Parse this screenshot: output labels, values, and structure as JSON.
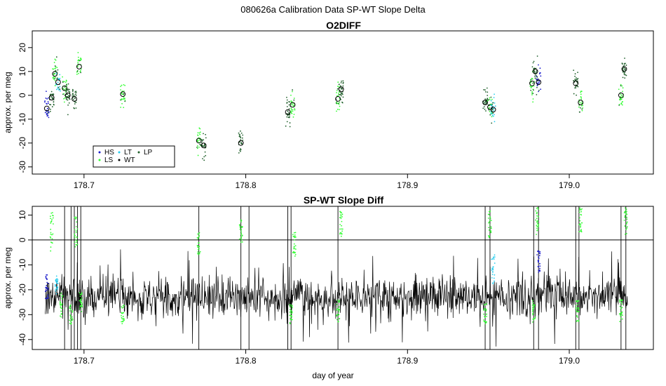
{
  "page_title": "080626a   Calibration Data SP-WT Slope Delta",
  "colors": {
    "HS": "#1a1acc",
    "LS": "#33ff33",
    "LT": "#22ccee",
    "WT": "#000000",
    "LP": "#1f5f2a"
  },
  "chart_data": [
    {
      "type": "scatter",
      "title": "O2DIFF",
      "xlabel": "",
      "ylabel": "approx. per meg",
      "xlim": [
        178.668,
        179.052
      ],
      "ylim": [
        -33,
        27
      ],
      "xticks": [
        178.7,
        178.8,
        178.9,
        179.0
      ],
      "xtick_labels": [
        "178.7",
        "178.8",
        "178.9",
        "179.0"
      ],
      "yticks": [
        -30,
        -20,
        -10,
        0,
        10,
        20
      ],
      "ytick_labels": [
        "-30",
        "-20",
        "-10",
        "0",
        "10",
        "20"
      ],
      "grid": false,
      "legend_position": "bottom-left",
      "legend": [
        {
          "key": "HS",
          "label": "HS",
          "marker": "dot"
        },
        {
          "key": "LS",
          "label": "LS",
          "marker": "dot"
        },
        {
          "key": "LT",
          "label": "LT",
          "marker": "dot"
        },
        {
          "key": "WT",
          "label": "WT",
          "marker": "dot"
        },
        {
          "key": "LP",
          "label": "LP",
          "marker": "dot"
        }
      ],
      "clusters": [
        {
          "x": 178.677,
          "y": -5.5,
          "series": "HS"
        },
        {
          "x": 178.68,
          "y": -1,
          "series": "LP"
        },
        {
          "x": 178.682,
          "y": 9,
          "series": "LS"
        },
        {
          "x": 178.684,
          "y": 5.5,
          "series": "LT"
        },
        {
          "x": 178.688,
          "y": 3,
          "series": "LS"
        },
        {
          "x": 178.69,
          "y": 0,
          "series": "LP"
        },
        {
          "x": 178.694,
          "y": -1.5,
          "series": "LP"
        },
        {
          "x": 178.697,
          "y": 12,
          "series": "LS"
        },
        {
          "x": 178.724,
          "y": 0.5,
          "series": "LS"
        },
        {
          "x": 178.771,
          "y": -19,
          "series": "LS"
        },
        {
          "x": 178.774,
          "y": -21,
          "series": "LP"
        },
        {
          "x": 178.797,
          "y": -20,
          "series": "LP"
        },
        {
          "x": 178.826,
          "y": -7,
          "series": "LP"
        },
        {
          "x": 178.829,
          "y": -4,
          "series": "LS"
        },
        {
          "x": 178.857,
          "y": -1.5,
          "series": "LS"
        },
        {
          "x": 178.859,
          "y": 2.5,
          "series": "LP"
        },
        {
          "x": 178.948,
          "y": -3,
          "series": "LP"
        },
        {
          "x": 178.951,
          "y": -5,
          "series": "LS"
        },
        {
          "x": 178.953,
          "y": -6,
          "series": "LT"
        },
        {
          "x": 178.977,
          "y": 5,
          "series": "LS"
        },
        {
          "x": 178.979,
          "y": 10,
          "series": "LP"
        },
        {
          "x": 178.981,
          "y": 5.5,
          "series": "HS"
        },
        {
          "x": 179.004,
          "y": 5,
          "series": "LP"
        },
        {
          "x": 179.007,
          "y": -3,
          "series": "LS"
        },
        {
          "x": 179.032,
          "y": 0,
          "series": "LS"
        },
        {
          "x": 179.034,
          "y": 11,
          "series": "LP"
        }
      ]
    },
    {
      "type": "line",
      "title": "SP-WT Slope Diff",
      "xlabel": "day of year",
      "ylabel": "approx. per meg",
      "xlim": [
        178.668,
        179.052
      ],
      "ylim": [
        -44,
        13.5
      ],
      "xticks": [
        178.7,
        178.8,
        178.9,
        179.0
      ],
      "xtick_labels": [
        "178.7",
        "178.8",
        "178.9",
        "179.0"
      ],
      "yticks": [
        -40,
        -30,
        -20,
        -10,
        0,
        10
      ],
      "ytick_labels": [
        "-40",
        "-30",
        "-20",
        "-10",
        "0",
        "10"
      ],
      "hline": 0,
      "grid": false,
      "series": [
        {
          "key": "WT",
          "style": "line",
          "baseline": -23,
          "noise_sd": 5.5,
          "x_range": [
            178.676,
            179.036
          ]
        }
      ],
      "segments": [
        {
          "x": 178.677,
          "series": "HS",
          "range": [
            -24,
            -14
          ]
        },
        {
          "x": 178.683,
          "series": "LT",
          "range": [
            -22,
            -14
          ]
        },
        {
          "x": 178.686,
          "series": "LS",
          "range": [
            -33,
            -20
          ]
        },
        {
          "x": 178.68,
          "series": "LS",
          "range": [
            -5,
            12
          ]
        },
        {
          "x": 178.692,
          "series": "LS",
          "range": [
            -34,
            -26
          ]
        },
        {
          "x": 178.695,
          "series": "LS",
          "range": [
            -3,
            10
          ]
        },
        {
          "x": 178.698,
          "series": "LS",
          "range": [
            -29,
            -21
          ]
        },
        {
          "x": 178.724,
          "series": "LS",
          "range": [
            -34,
            -26
          ]
        },
        {
          "x": 178.771,
          "series": "LS",
          "range": [
            -6,
            3
          ]
        },
        {
          "x": 178.797,
          "series": "LS",
          "range": [
            -1,
            8
          ]
        },
        {
          "x": 178.828,
          "series": "LS",
          "range": [
            -34,
            -26
          ]
        },
        {
          "x": 178.83,
          "series": "LS",
          "range": [
            -7,
            3
          ]
        },
        {
          "x": 178.857,
          "series": "LS",
          "range": [
            -33,
            -24
          ]
        },
        {
          "x": 178.859,
          "series": "LS",
          "range": [
            1,
            12
          ]
        },
        {
          "x": 178.948,
          "series": "LS",
          "range": [
            -34,
            -25
          ]
        },
        {
          "x": 178.951,
          "series": "LS",
          "range": [
            1,
            12
          ]
        },
        {
          "x": 178.953,
          "series": "LT",
          "range": [
            -18,
            -6
          ]
        },
        {
          "x": 178.978,
          "series": "LS",
          "range": [
            -33,
            -24
          ]
        },
        {
          "x": 178.98,
          "series": "LS",
          "range": [
            2,
            13
          ]
        },
        {
          "x": 178.981,
          "series": "HS",
          "range": [
            -13,
            -4
          ]
        },
        {
          "x": 179.005,
          "series": "LS",
          "range": [
            -33,
            -24
          ]
        },
        {
          "x": 179.007,
          "series": "LS",
          "range": [
            3,
            13
          ]
        },
        {
          "x": 179.032,
          "series": "LS",
          "range": [
            -34,
            -24
          ]
        },
        {
          "x": 179.035,
          "series": "LS",
          "range": [
            2,
            13
          ]
        }
      ],
      "spikes": [
        178.688,
        178.692,
        178.694,
        178.696,
        178.698,
        178.771,
        178.797,
        178.802,
        178.826,
        178.828,
        178.857,
        178.948,
        178.951,
        178.978,
        178.981,
        179.004,
        179.006,
        179.032,
        179.035
      ]
    }
  ]
}
